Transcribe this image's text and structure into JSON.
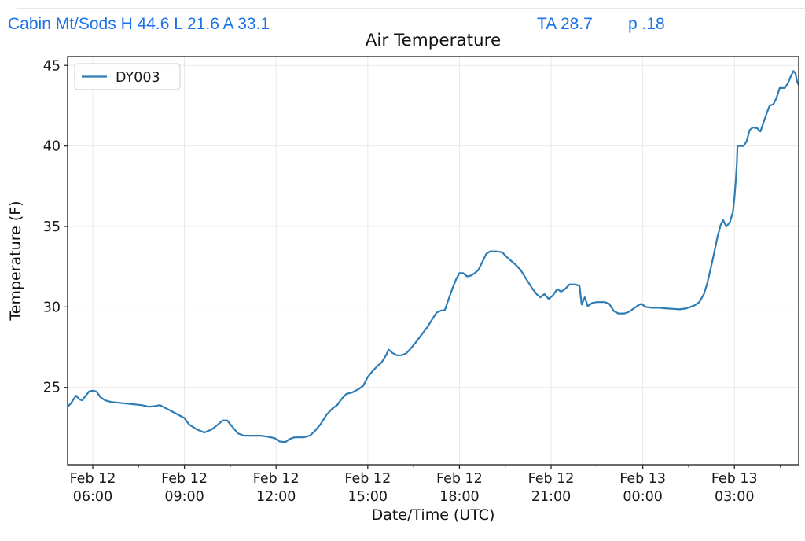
{
  "header": {
    "station_summary": "Cabin Mt/Sods H 44.6 L 21.6 A 33.1",
    "ta_value": "TA 28.7",
    "p_value": "p .18",
    "accent_color": "#1a73e8"
  },
  "chart_data": {
    "type": "line",
    "title": "Air Temperature",
    "xlabel": "Date/Time (UTC)",
    "ylabel": "Temperature (F)",
    "legend": [
      "DY003"
    ],
    "legend_position": "upper left",
    "grid": true,
    "grid_color": "#e8e8e8",
    "line_color": "#2e7cb5",
    "text_color": "#1a1a1a",
    "ylim": [
      20.2,
      45.55
    ],
    "yticks": [
      25,
      30,
      35,
      40,
      45
    ],
    "xlim_hours": [
      5.177,
      29.103
    ],
    "xticks": [
      {
        "hours": 6,
        "label": [
          "Feb 12",
          "06:00"
        ]
      },
      {
        "hours": 9,
        "label": [
          "Feb 12",
          "09:00"
        ]
      },
      {
        "hours": 12,
        "label": [
          "Feb 12",
          "12:00"
        ]
      },
      {
        "hours": 15,
        "label": [
          "Feb 12",
          "15:00"
        ]
      },
      {
        "hours": 18,
        "label": [
          "Feb 12",
          "18:00"
        ]
      },
      {
        "hours": 21,
        "label": [
          "Feb 12",
          "21:00"
        ]
      },
      {
        "hours": 24,
        "label": [
          "Feb 13",
          "00:00"
        ]
      },
      {
        "hours": 27,
        "label": [
          "Feb 13",
          "03:00"
        ]
      }
    ],
    "minor_xticks_hours": [
      7.5,
      10.5,
      13.5,
      16.5,
      19.5,
      22.5,
      25.5,
      28.5
    ],
    "series": [
      {
        "name": "DY003",
        "points": [
          [
            5.18,
            23.8
          ],
          [
            5.3,
            24.05
          ],
          [
            5.45,
            24.5
          ],
          [
            5.57,
            24.25
          ],
          [
            5.65,
            24.2
          ],
          [
            5.78,
            24.5
          ],
          [
            5.88,
            24.75
          ],
          [
            6.0,
            24.8
          ],
          [
            6.12,
            24.75
          ],
          [
            6.25,
            24.4
          ],
          [
            6.4,
            24.2
          ],
          [
            6.6,
            24.1
          ],
          [
            6.85,
            24.05
          ],
          [
            7.1,
            24.0
          ],
          [
            7.35,
            23.95
          ],
          [
            7.6,
            23.9
          ],
          [
            7.85,
            23.8
          ],
          [
            8.05,
            23.85
          ],
          [
            8.2,
            23.9
          ],
          [
            8.35,
            23.75
          ],
          [
            8.55,
            23.55
          ],
          [
            8.75,
            23.35
          ],
          [
            9.0,
            23.1
          ],
          [
            9.15,
            22.7
          ],
          [
            9.4,
            22.4
          ],
          [
            9.65,
            22.2
          ],
          [
            9.9,
            22.4
          ],
          [
            10.1,
            22.7
          ],
          [
            10.25,
            22.95
          ],
          [
            10.4,
            22.95
          ],
          [
            10.55,
            22.6
          ],
          [
            10.75,
            22.15
          ],
          [
            10.95,
            22.0
          ],
          [
            11.2,
            22.0
          ],
          [
            11.5,
            22.0
          ],
          [
            11.7,
            21.95
          ],
          [
            11.95,
            21.85
          ],
          [
            12.1,
            21.65
          ],
          [
            12.3,
            21.6
          ],
          [
            12.45,
            21.8
          ],
          [
            12.6,
            21.9
          ],
          [
            12.9,
            21.9
          ],
          [
            13.1,
            22.0
          ],
          [
            13.25,
            22.25
          ],
          [
            13.45,
            22.7
          ],
          [
            13.65,
            23.3
          ],
          [
            13.85,
            23.7
          ],
          [
            14.0,
            23.9
          ],
          [
            14.15,
            24.3
          ],
          [
            14.3,
            24.6
          ],
          [
            14.5,
            24.7
          ],
          [
            14.7,
            24.9
          ],
          [
            14.85,
            25.1
          ],
          [
            15.0,
            25.65
          ],
          [
            15.15,
            26.0
          ],
          [
            15.3,
            26.3
          ],
          [
            15.45,
            26.55
          ],
          [
            15.6,
            27.0
          ],
          [
            15.68,
            27.35
          ],
          [
            15.8,
            27.15
          ],
          [
            15.95,
            27.0
          ],
          [
            16.1,
            27.0
          ],
          [
            16.25,
            27.1
          ],
          [
            16.4,
            27.4
          ],
          [
            16.55,
            27.75
          ],
          [
            16.75,
            28.25
          ],
          [
            16.95,
            28.75
          ],
          [
            17.1,
            29.2
          ],
          [
            17.25,
            29.65
          ],
          [
            17.4,
            29.78
          ],
          [
            17.52,
            29.8
          ],
          [
            17.65,
            30.5
          ],
          [
            17.78,
            31.2
          ],
          [
            17.9,
            31.75
          ],
          [
            18.0,
            32.1
          ],
          [
            18.12,
            32.1
          ],
          [
            18.25,
            31.9
          ],
          [
            18.38,
            31.95
          ],
          [
            18.5,
            32.1
          ],
          [
            18.62,
            32.3
          ],
          [
            18.75,
            32.8
          ],
          [
            18.88,
            33.3
          ],
          [
            19.0,
            33.45
          ],
          [
            19.2,
            33.45
          ],
          [
            19.4,
            33.4
          ],
          [
            19.55,
            33.1
          ],
          [
            19.7,
            32.85
          ],
          [
            19.85,
            32.6
          ],
          [
            20.0,
            32.3
          ],
          [
            20.2,
            31.7
          ],
          [
            20.4,
            31.1
          ],
          [
            20.55,
            30.75
          ],
          [
            20.65,
            30.6
          ],
          [
            20.78,
            30.8
          ],
          [
            20.92,
            30.5
          ],
          [
            21.05,
            30.7
          ],
          [
            21.2,
            31.1
          ],
          [
            21.33,
            30.95
          ],
          [
            21.48,
            31.15
          ],
          [
            21.6,
            31.4
          ],
          [
            21.8,
            31.4
          ],
          [
            21.93,
            31.3
          ],
          [
            22.0,
            30.15
          ],
          [
            22.1,
            30.6
          ],
          [
            22.2,
            30.05
          ],
          [
            22.35,
            30.25
          ],
          [
            22.5,
            30.3
          ],
          [
            22.75,
            30.3
          ],
          [
            22.9,
            30.2
          ],
          [
            23.05,
            29.75
          ],
          [
            23.2,
            29.6
          ],
          [
            23.4,
            29.6
          ],
          [
            23.55,
            29.7
          ],
          [
            23.7,
            29.9
          ],
          [
            23.85,
            30.1
          ],
          [
            23.95,
            30.2
          ],
          [
            24.1,
            30.0
          ],
          [
            24.3,
            29.95
          ],
          [
            24.55,
            29.95
          ],
          [
            24.8,
            29.9
          ],
          [
            25.0,
            29.88
          ],
          [
            25.2,
            29.85
          ],
          [
            25.4,
            29.9
          ],
          [
            25.55,
            30.0
          ],
          [
            25.7,
            30.1
          ],
          [
            25.85,
            30.3
          ],
          [
            26.0,
            30.8
          ],
          [
            26.1,
            31.4
          ],
          [
            26.2,
            32.2
          ],
          [
            26.32,
            33.2
          ],
          [
            26.45,
            34.4
          ],
          [
            26.55,
            35.1
          ],
          [
            26.63,
            35.4
          ],
          [
            26.73,
            35.0
          ],
          [
            26.85,
            35.25
          ],
          [
            26.95,
            35.9
          ],
          [
            27.0,
            36.8
          ],
          [
            27.05,
            38.0
          ],
          [
            27.08,
            39.0
          ],
          [
            27.1,
            40.0
          ],
          [
            27.3,
            40.0
          ],
          [
            27.4,
            40.3
          ],
          [
            27.5,
            41.0
          ],
          [
            27.6,
            41.15
          ],
          [
            27.75,
            41.1
          ],
          [
            27.85,
            40.9
          ],
          [
            27.95,
            41.45
          ],
          [
            28.05,
            42.0
          ],
          [
            28.15,
            42.5
          ],
          [
            28.28,
            42.6
          ],
          [
            28.38,
            43.0
          ],
          [
            28.48,
            43.6
          ],
          [
            28.65,
            43.6
          ],
          [
            28.75,
            43.9
          ],
          [
            28.85,
            44.35
          ],
          [
            28.93,
            44.65
          ],
          [
            29.0,
            44.5
          ],
          [
            29.05,
            44.0
          ],
          [
            29.1,
            43.8
          ]
        ]
      }
    ]
  }
}
